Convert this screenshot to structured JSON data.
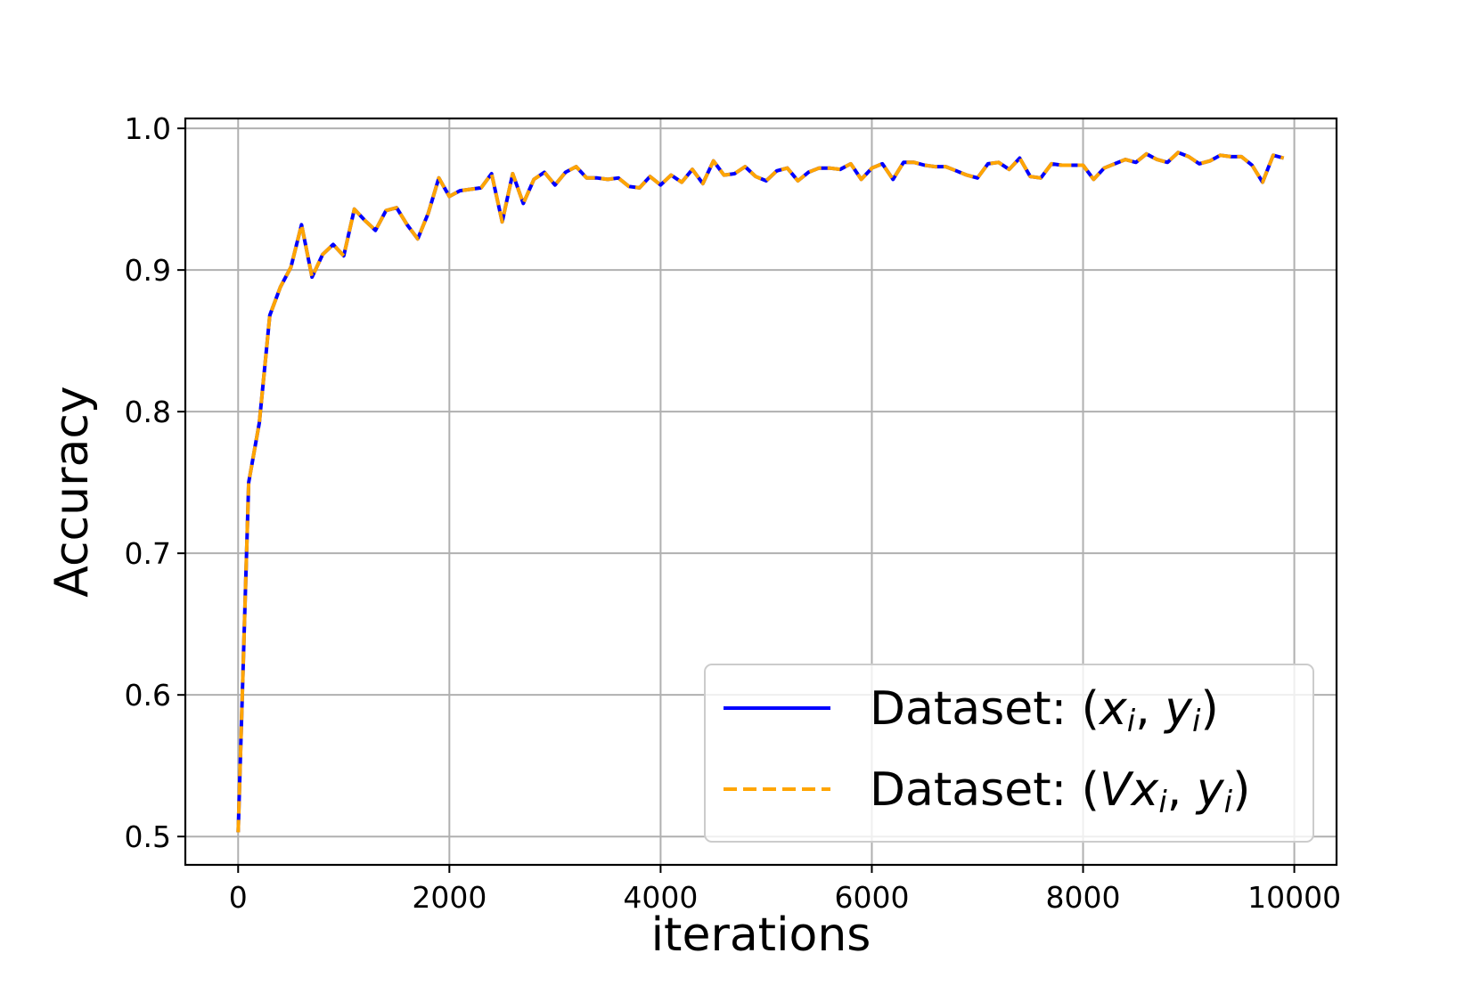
{
  "chart_data": {
    "type": "line",
    "title": "",
    "xlabel": "iterations",
    "ylabel": "Accuracy",
    "xlim": [
      -500,
      10400
    ],
    "ylim": [
      0.48,
      1.007
    ],
    "xticks": [
      0,
      2000,
      4000,
      6000,
      8000,
      10000
    ],
    "xtick_labels": [
      "0",
      "2000",
      "4000",
      "6000",
      "8000",
      "10000"
    ],
    "yticks": [
      0.5,
      0.6,
      0.7,
      0.8,
      0.9,
      1.0
    ],
    "ytick_labels": [
      "0.5",
      "0.6",
      "0.7",
      "0.8",
      "0.9",
      "1.0"
    ],
    "grid": true,
    "legend_position": "lower-right",
    "x": [
      0,
      100,
      200,
      300,
      400,
      500,
      600,
      700,
      800,
      900,
      1000,
      1100,
      1200,
      1300,
      1400,
      1500,
      1600,
      1700,
      1800,
      1900,
      2000,
      2100,
      2200,
      2300,
      2400,
      2500,
      2600,
      2700,
      2800,
      2900,
      3000,
      3100,
      3200,
      3300,
      3400,
      3500,
      3600,
      3700,
      3800,
      3900,
      4000,
      4100,
      4200,
      4300,
      4400,
      4500,
      4600,
      4700,
      4800,
      4900,
      5000,
      5100,
      5200,
      5300,
      5400,
      5500,
      5600,
      5700,
      5800,
      5900,
      6000,
      6100,
      6200,
      6300,
      6400,
      6500,
      6600,
      6700,
      6800,
      6900,
      7000,
      7100,
      7200,
      7300,
      7400,
      7500,
      7600,
      7700,
      7800,
      7900,
      8000,
      8100,
      8200,
      8300,
      8400,
      8500,
      8600,
      8700,
      8800,
      8900,
      9000,
      9100,
      9200,
      9300,
      9400,
      9500,
      9600,
      9700,
      9800,
      9900
    ],
    "series": [
      {
        "name": "Dataset: (xi, yi)",
        "color": "#0000ff",
        "style": "solid",
        "values": [
          0.503,
          0.75,
          0.792,
          0.868,
          0.888,
          0.902,
          0.932,
          0.895,
          0.911,
          0.918,
          0.91,
          0.943,
          0.935,
          0.928,
          0.942,
          0.944,
          0.932,
          0.922,
          0.94,
          0.965,
          0.952,
          0.956,
          0.957,
          0.958,
          0.968,
          0.934,
          0.968,
          0.947,
          0.964,
          0.969,
          0.96,
          0.969,
          0.973,
          0.965,
          0.965,
          0.964,
          0.965,
          0.959,
          0.958,
          0.966,
          0.96,
          0.967,
          0.962,
          0.971,
          0.961,
          0.977,
          0.967,
          0.968,
          0.973,
          0.966,
          0.963,
          0.97,
          0.972,
          0.963,
          0.969,
          0.972,
          0.972,
          0.971,
          0.975,
          0.964,
          0.972,
          0.975,
          0.964,
          0.976,
          0.976,
          0.974,
          0.973,
          0.973,
          0.97,
          0.967,
          0.965,
          0.975,
          0.976,
          0.971,
          0.979,
          0.966,
          0.965,
          0.975,
          0.974,
          0.974,
          0.974,
          0.964,
          0.972,
          0.975,
          0.978,
          0.976,
          0.982,
          0.978,
          0.976,
          0.983,
          0.98,
          0.975,
          0.977,
          0.981,
          0.98,
          0.98,
          0.974,
          0.962,
          0.981,
          0.979
        ]
      },
      {
        "name": "Dataset: (Vxi, yi)",
        "color": "#ffa500",
        "style": "dashed",
        "values": [
          0.503,
          0.75,
          0.792,
          0.868,
          0.888,
          0.902,
          0.932,
          0.895,
          0.911,
          0.918,
          0.91,
          0.943,
          0.935,
          0.928,
          0.942,
          0.944,
          0.932,
          0.922,
          0.94,
          0.965,
          0.952,
          0.956,
          0.957,
          0.958,
          0.968,
          0.934,
          0.968,
          0.947,
          0.964,
          0.969,
          0.96,
          0.969,
          0.973,
          0.965,
          0.965,
          0.964,
          0.965,
          0.959,
          0.958,
          0.966,
          0.96,
          0.967,
          0.962,
          0.971,
          0.961,
          0.977,
          0.967,
          0.968,
          0.973,
          0.966,
          0.963,
          0.97,
          0.972,
          0.963,
          0.969,
          0.972,
          0.972,
          0.971,
          0.975,
          0.964,
          0.972,
          0.975,
          0.964,
          0.976,
          0.976,
          0.974,
          0.973,
          0.973,
          0.97,
          0.967,
          0.965,
          0.975,
          0.976,
          0.971,
          0.979,
          0.966,
          0.965,
          0.975,
          0.974,
          0.974,
          0.974,
          0.964,
          0.972,
          0.975,
          0.978,
          0.976,
          0.982,
          0.978,
          0.976,
          0.983,
          0.98,
          0.975,
          0.977,
          0.981,
          0.98,
          0.98,
          0.974,
          0.962,
          0.981,
          0.979
        ]
      }
    ],
    "legend": [
      {
        "prefix": "Dataset: (",
        "var1": "x",
        "sub1": "i",
        "sep": ", ",
        "var2": "y",
        "sub2": "i",
        "suffix": ")"
      },
      {
        "prefix": "Dataset: (",
        "var1": "Vx",
        "sub1": "i",
        "sep": ", ",
        "var2": "y",
        "sub2": "i",
        "suffix": ")"
      }
    ]
  }
}
